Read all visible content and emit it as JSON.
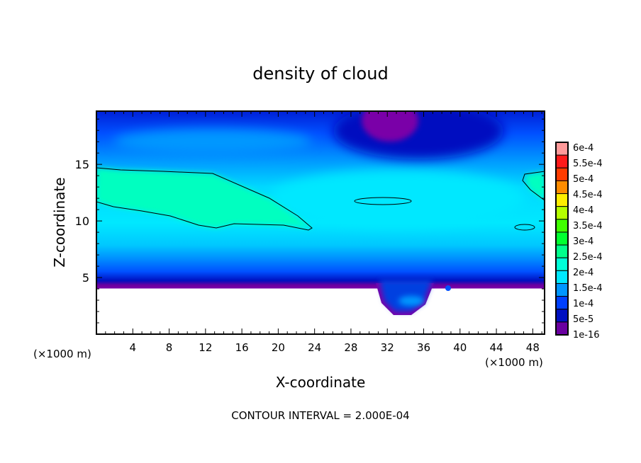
{
  "chart_data": {
    "type": "heatmap",
    "subtype": "filled-contour",
    "title": "density of cloud",
    "xlabel": "X-coordinate",
    "ylabel": "Z-coordinate",
    "x_unit_left": "(×1000 m)",
    "x_unit_right": "(×1000 m)",
    "xlim": [
      0,
      49.3
    ],
    "ylim": [
      0,
      19.7
    ],
    "xticks": [
      4,
      8,
      12,
      16,
      20,
      24,
      28,
      32,
      36,
      40,
      44,
      48
    ],
    "yticks": [
      5,
      10,
      15
    ],
    "footer": "CONTOUR INTERVAL = 2.000E-04",
    "colorbar": {
      "labels": [
        "6e-4",
        "5.5e-4",
        "5e-4",
        "4.5e-4",
        "4e-4",
        "3.5e-4",
        "3e-4",
        "2.5e-4",
        "2e-4",
        "1.5e-4",
        "1e-4",
        "5e-5",
        "1e-16"
      ],
      "colors": [
        "#ff9a9a",
        "#ff1a1a",
        "#ff3c00",
        "#ff8c00",
        "#ffee00",
        "#b4ff00",
        "#40ff00",
        "#00ff30",
        "#00ff8c",
        "#00ffd8",
        "#00e8ff",
        "#0096ff",
        "#0040ff",
        "#0010c0",
        "#6a00a0"
      ]
    },
    "contour_level": 0.0002,
    "field_notes": {
      "max_region_value_approx": 0.00022,
      "cloud_base_km": 4.2,
      "cloud_free_below_km": 4.0
    }
  }
}
